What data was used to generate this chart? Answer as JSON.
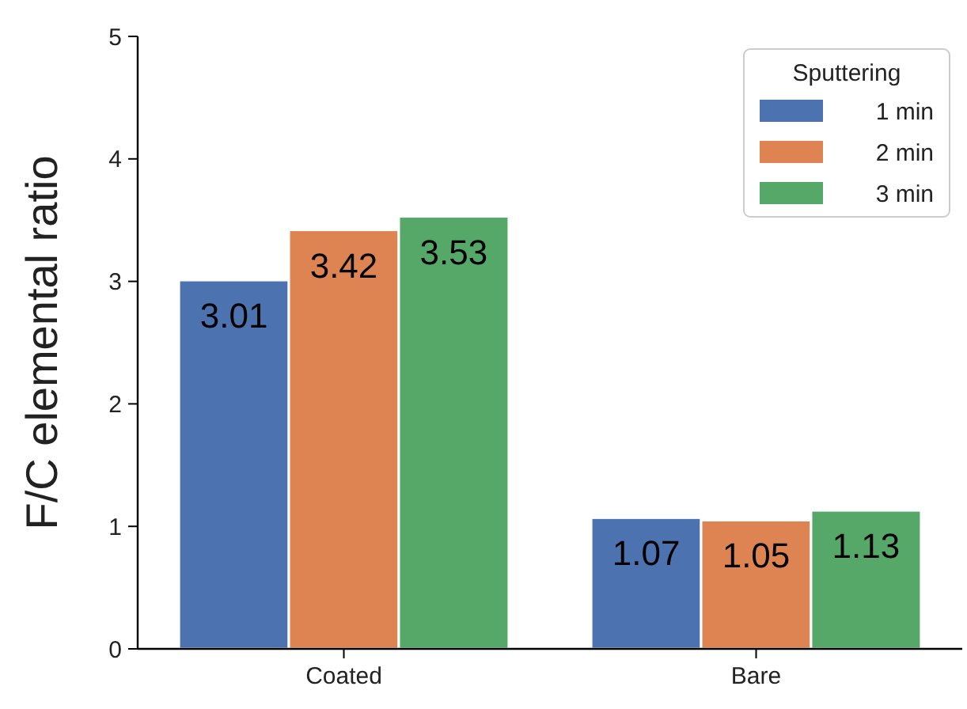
{
  "chart_data": {
    "type": "bar",
    "ylabel": "F/C elemental ratio",
    "categories": [
      "Coated",
      "Bare"
    ],
    "series": [
      {
        "name": "1 min",
        "color": "#4c72b0",
        "values": [
          3.01,
          1.07
        ]
      },
      {
        "name": "2 min",
        "color": "#dd8452",
        "values": [
          3.42,
          1.05
        ]
      },
      {
        "name": "3 min",
        "color": "#55a868",
        "values": [
          3.53,
          1.13
        ]
      }
    ],
    "ylim": [
      0,
      5
    ],
    "yticks": [
      0,
      1,
      2,
      3,
      4,
      5
    ],
    "grid": false,
    "legend": "top right",
    "legend_title": "Sputtering",
    "data_labels": true
  }
}
